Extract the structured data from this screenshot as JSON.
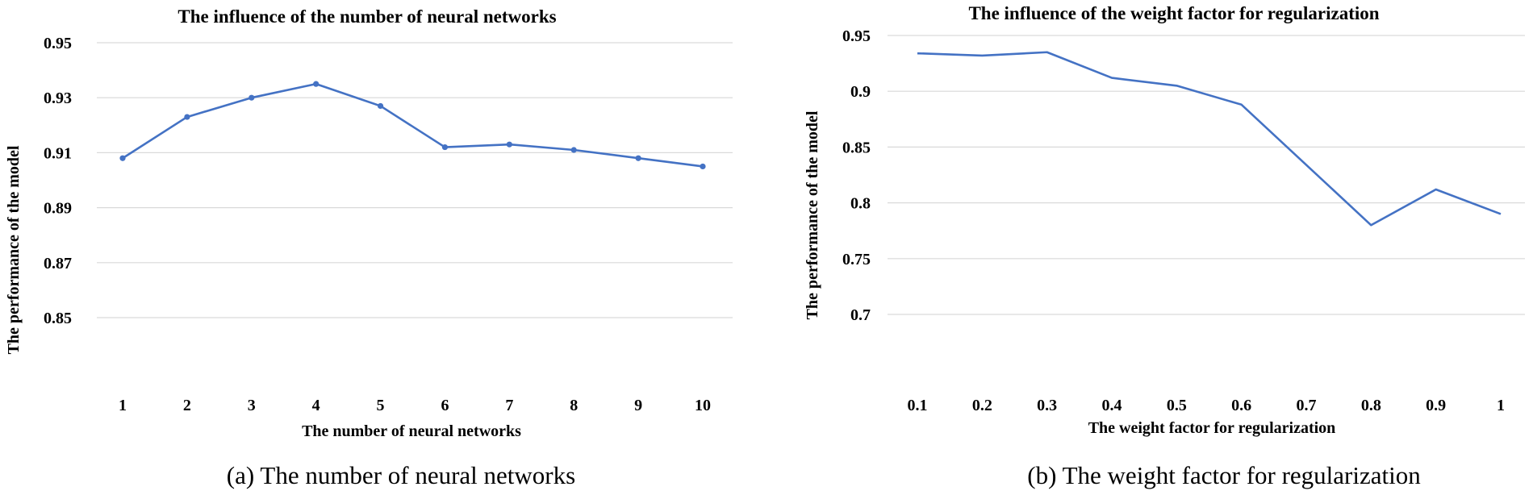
{
  "chart_data": [
    {
      "type": "line",
      "title": "The influence of the number of neural networks",
      "xlabel": "The number of neural networks",
      "ylabel": "The performance of the model",
      "caption": "(a) The number of neural networks",
      "categories": [
        "1",
        "2",
        "3",
        "4",
        "5",
        "6",
        "7",
        "8",
        "9",
        "10"
      ],
      "series": [
        {
          "values": [
            0.908,
            0.923,
            0.93,
            0.935,
            0.927,
            0.912,
            0.913,
            0.911,
            0.908,
            0.905
          ]
        }
      ],
      "yticks": [
        "0.85",
        "0.87",
        "0.89",
        "0.91",
        "0.93",
        "0.95"
      ],
      "ylim": [
        0.85,
        0.95
      ],
      "markers": true,
      "grid": true,
      "color": "#4472c4"
    },
    {
      "type": "line",
      "title": "The influence of the weight factor for regularization",
      "xlabel": "The weight factor for regularization",
      "ylabel": "The performance of the model",
      "caption": "(b) The weight factor for regularization",
      "categories": [
        "0.1",
        "0.2",
        "0.3",
        "0.4",
        "0.5",
        "0.6",
        "0.7",
        "0.8",
        "0.9",
        "1"
      ],
      "series": [
        {
          "values": [
            0.934,
            0.932,
            0.935,
            0.912,
            0.905,
            0.888,
            0.834,
            0.78,
            0.812,
            0.79
          ]
        }
      ],
      "yticks": [
        "0.7",
        "0.75",
        "0.8",
        "0.85",
        "0.9",
        "0.95"
      ],
      "ylim": [
        0.7,
        0.95
      ],
      "markers": false,
      "grid": true,
      "color": "#4472c4"
    }
  ]
}
